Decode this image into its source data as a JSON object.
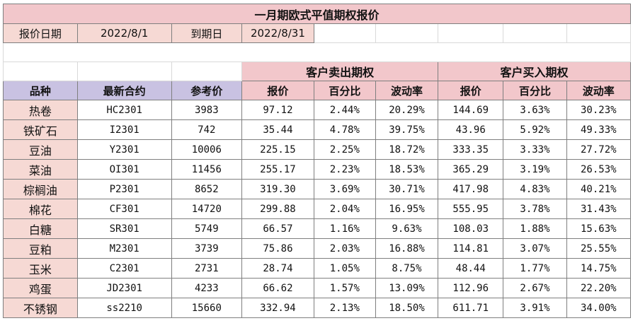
{
  "title": "一月期欧式平值期权报价",
  "info": {
    "report_date_label": "报价日期",
    "report_date_value": "2022/8/1",
    "expiry_label": "到期日",
    "expiry_value": "2022/8/31"
  },
  "groups": {
    "client_sell": "客户卖出期权",
    "client_buy": "客户买入期权"
  },
  "headers": {
    "product": "品种",
    "contract": "最新合约",
    "ref_price": "参考价",
    "sell_quote": "报价",
    "sell_pct": "百分比",
    "sell_vol": "波动率",
    "buy_quote": "报价",
    "buy_pct": "百分比",
    "buy_vol": "波动率"
  },
  "rows": [
    {
      "product": "热卷",
      "contract": "HC2301",
      "ref_price": "3983",
      "sell_quote": "97.12",
      "sell_pct": "2.44%",
      "sell_vol": "20.29%",
      "buy_quote": "144.69",
      "buy_pct": "3.63%",
      "buy_vol": "30.23%"
    },
    {
      "product": "铁矿石",
      "contract": "I2301",
      "ref_price": "742",
      "sell_quote": "35.44",
      "sell_pct": "4.78%",
      "sell_vol": "39.75%",
      "buy_quote": "43.96",
      "buy_pct": "5.92%",
      "buy_vol": "49.33%"
    },
    {
      "product": "豆油",
      "contract": "Y2301",
      "ref_price": "10006",
      "sell_quote": "225.15",
      "sell_pct": "2.25%",
      "sell_vol": "18.72%",
      "buy_quote": "333.35",
      "buy_pct": "3.33%",
      "buy_vol": "27.72%"
    },
    {
      "product": "菜油",
      "contract": "OI301",
      "ref_price": "11456",
      "sell_quote": "255.17",
      "sell_pct": "2.23%",
      "sell_vol": "18.53%",
      "buy_quote": "365.29",
      "buy_pct": "3.19%",
      "buy_vol": "26.53%"
    },
    {
      "product": "棕榈油",
      "contract": "P2301",
      "ref_price": "8652",
      "sell_quote": "319.30",
      "sell_pct": "3.69%",
      "sell_vol": "30.71%",
      "buy_quote": "417.98",
      "buy_pct": "4.83%",
      "buy_vol": "40.21%"
    },
    {
      "product": "棉花",
      "contract": "CF301",
      "ref_price": "14720",
      "sell_quote": "299.88",
      "sell_pct": "2.04%",
      "sell_vol": "16.95%",
      "buy_quote": "555.95",
      "buy_pct": "3.78%",
      "buy_vol": "31.43%"
    },
    {
      "product": "白糖",
      "contract": "SR301",
      "ref_price": "5749",
      "sell_quote": "66.57",
      "sell_pct": "1.16%",
      "sell_vol": "9.63%",
      "buy_quote": "108.03",
      "buy_pct": "1.88%",
      "buy_vol": "15.63%"
    },
    {
      "product": "豆粕",
      "contract": "M2301",
      "ref_price": "3739",
      "sell_quote": "75.86",
      "sell_pct": "2.03%",
      "sell_vol": "16.88%",
      "buy_quote": "114.81",
      "buy_pct": "3.07%",
      "buy_vol": "25.55%"
    },
    {
      "product": "玉米",
      "contract": "C2301",
      "ref_price": "2731",
      "sell_quote": "28.74",
      "sell_pct": "1.05%",
      "sell_vol": "8.75%",
      "buy_quote": "48.44",
      "buy_pct": "1.77%",
      "buy_vol": "14.75%"
    },
    {
      "product": "鸡蛋",
      "contract": "JD2301",
      "ref_price": "4233",
      "sell_quote": "66.62",
      "sell_pct": "1.57%",
      "sell_vol": "13.09%",
      "buy_quote": "112.96",
      "buy_pct": "2.67%",
      "buy_vol": "22.20%"
    },
    {
      "product": "不锈钢",
      "contract": "ss2210",
      "ref_price": "15660",
      "sell_quote": "332.94",
      "sell_pct": "2.13%",
      "sell_vol": "18.50%",
      "buy_quote": "611.71",
      "buy_pct": "3.91%",
      "buy_vol": "34.00%"
    }
  ],
  "colors": {
    "title_bg": "#f2c7cb",
    "pink_bg": "#f6d9d4",
    "lavender_bg": "#c9c2e2"
  }
}
